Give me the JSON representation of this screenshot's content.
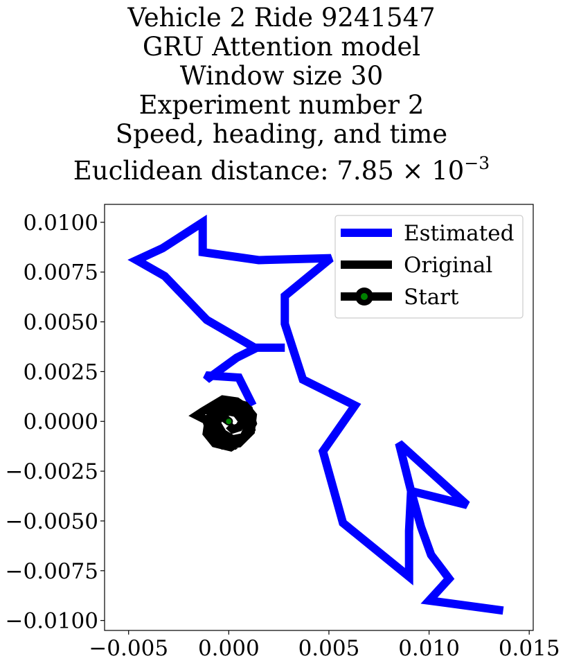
{
  "title_lines": [
    "Vehicle 2 Ride 9241547",
    "GRU Attention model",
    "Window size 30",
    "Experiment number 2",
    "Speed, heading, and time"
  ],
  "title_distance": {
    "prefix": "Euclidean distance: 7.85 × 10",
    "exponent": "−3"
  },
  "chart_data": {
    "type": "line",
    "xlim": [
      -0.0062,
      0.0152
    ],
    "ylim": [
      -0.0105,
      0.0109
    ],
    "xticks": [
      -0.005,
      0.0,
      0.005,
      0.01,
      0.015
    ],
    "xtick_labels": [
      "−0.005",
      "0.000",
      "0.005",
      "0.010",
      "0.015"
    ],
    "yticks": [
      0.01,
      0.0075,
      0.005,
      0.0025,
      0.0,
      -0.0025,
      -0.005,
      -0.0075,
      -0.01
    ],
    "ytick_labels": [
      "0.0100",
      "0.0075",
      "0.0050",
      "0.0025",
      "0.0000",
      "−0.0025",
      "−0.0050",
      "−0.0075",
      "−0.0100"
    ],
    "grid": false,
    "legend_position": "top-right",
    "series": [
      {
        "name": "Estimated",
        "color": "#0000ff",
        "x": [
          0.0012,
          0.0005,
          -0.001,
          -0.0011,
          0.0004,
          0.0014,
          0.0028,
          0.0013,
          -0.0011,
          -0.0032,
          -0.0046,
          -0.0033,
          -0.0013,
          -0.0013,
          0.0015,
          0.0051,
          0.0028,
          0.0028,
          0.0037,
          0.0063,
          0.0047,
          0.0057,
          0.009,
          0.009,
          0.0091,
          0.0119,
          0.0085,
          0.0091,
          0.0096,
          0.0101,
          0.011,
          0.01,
          0.0137
        ],
        "y": [
          0.0008,
          0.0022,
          0.0023,
          0.0021,
          0.0032,
          0.0037,
          0.0037,
          0.0037,
          0.0051,
          0.0073,
          0.0081,
          0.0087,
          0.01,
          0.0085,
          0.0081,
          0.0082,
          0.0063,
          0.0049,
          0.0021,
          0.0008,
          -0.0015,
          -0.0051,
          -0.0078,
          -0.0055,
          -0.0035,
          -0.0042,
          -0.0011,
          -0.0035,
          -0.0053,
          -0.0067,
          -0.0079,
          -0.009,
          -0.0095
        ]
      },
      {
        "name": "Original",
        "color": "#000000",
        "x": [
          0.0,
          -0.0007,
          -0.0011,
          -0.0009,
          -0.0003,
          0.0005,
          0.0011,
          0.0012,
          0.0008,
          0.0001,
          -0.0006,
          -0.001,
          -0.0011,
          -0.0007,
          0.0001,
          0.0007,
          0.001,
          0.0008,
          0.0002,
          -0.0005,
          -0.0009,
          -0.0008,
          -0.0003,
          0.0003,
          0.0008,
          0.0012,
          0.001,
          0.0004,
          -0.0003,
          -0.0008,
          -0.0013,
          -0.0016,
          -0.0012,
          -0.0006,
          0.0,
          0.0005,
          0.0009,
          0.0011,
          0.0007,
          0.0002,
          -0.0003,
          -0.0006,
          -0.0004,
          0.0,
          0.0004,
          0.0007,
          0.0005,
          0.0002,
          0.0
        ],
        "y": [
          0.0,
          0.0005,
          0.0,
          -0.0007,
          -0.0012,
          -0.0011,
          -0.0005,
          0.0003,
          0.0008,
          0.001,
          0.0007,
          0.0001,
          -0.0006,
          -0.0011,
          -0.0013,
          -0.0009,
          -0.0002,
          0.0005,
          0.0009,
          0.0008,
          0.0003,
          -0.0004,
          -0.001,
          -0.0012,
          -0.0008,
          -0.0001,
          0.0006,
          0.001,
          0.0011,
          0.0008,
          0.0005,
          0.0003,
          0.0001,
          0.0002,
          0.0005,
          0.0004,
          0.0,
          -0.0004,
          -0.0008,
          -0.0009,
          -0.0006,
          -0.0001,
          0.0004,
          0.0006,
          0.0004,
          0.0,
          -0.0003,
          -0.0004,
          -0.0002
        ]
      },
      {
        "name": "Start",
        "color": "#008000",
        "edge_color": "#000000",
        "x": [
          0.0
        ],
        "y": [
          0.0
        ]
      }
    ]
  }
}
